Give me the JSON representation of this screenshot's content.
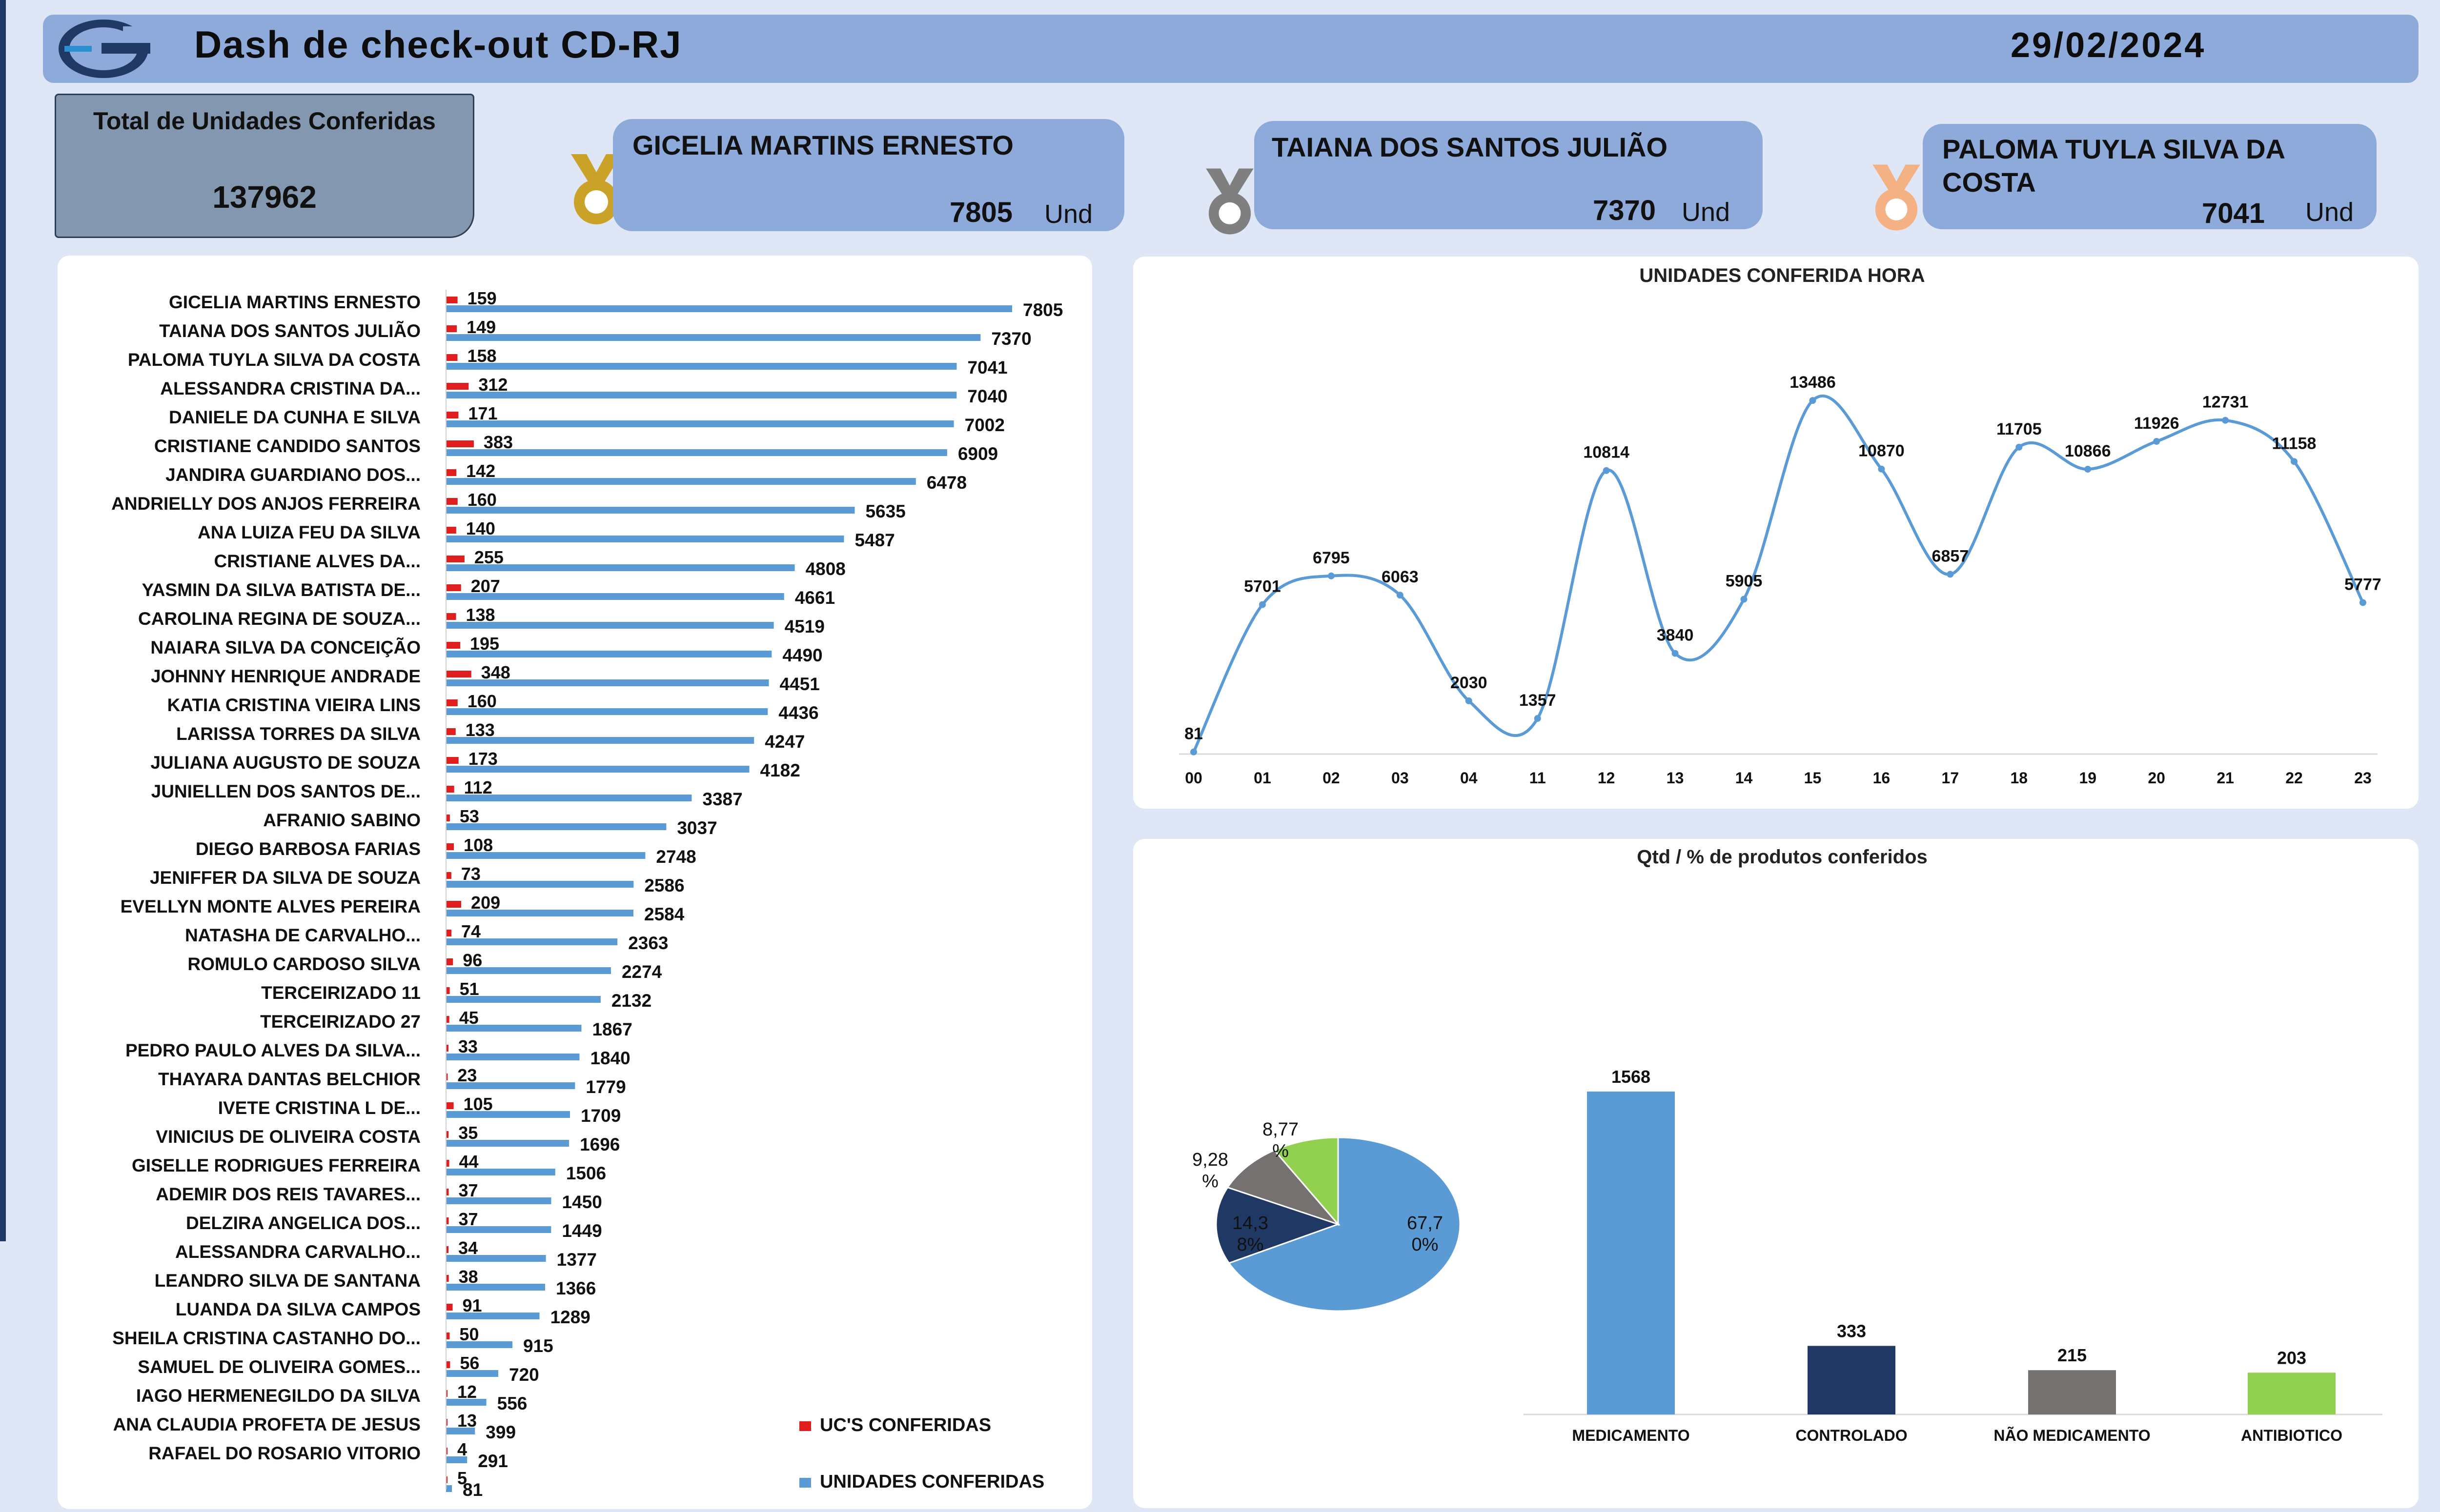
{
  "header": {
    "title": "Dash de check-out CD-RJ",
    "date": "29/02/2024"
  },
  "total": {
    "label": "Total de Unidades Conferidas",
    "value": "137962"
  },
  "podium": [
    {
      "name": "GICELIA MARTINS ERNESTO",
      "value": "7805",
      "unit": "Und",
      "medal": "gold-medal-icon",
      "color": "#c9a227"
    },
    {
      "name": "TAIANA DOS SANTOS JULIÃO",
      "value": "7370",
      "unit": "Und",
      "medal": "silver-medal-icon",
      "color": "#7f7f7f"
    },
    {
      "name": "PALOMA TUYLA SILVA DA COSTA",
      "value": "7041",
      "unit": "Und",
      "medal": "bronze-medal-icon",
      "color": "#f4b183"
    }
  ],
  "colors": {
    "uc": "#e01e1e",
    "unidades": "#5b9bd5",
    "line": "#5b9bd5",
    "medicamento": "#5b9bd5",
    "controlado": "#203864",
    "nao_medicamento": "#767171",
    "antibiotico": "#92d050"
  },
  "chart_data": [
    {
      "type": "bar",
      "orientation": "horizontal",
      "title": "",
      "legend_position": "bottom-right",
      "categories": [
        "GICELIA MARTINS ERNESTO",
        "TAIANA DOS SANTOS JULIÃO",
        "PALOMA TUYLA SILVA DA COSTA",
        "ALESSANDRA CRISTINA DA...",
        "DANIELE DA CUNHA E SILVA",
        "CRISTIANE CANDIDO SANTOS",
        "JANDIRA GUARDIANO DOS...",
        "ANDRIELLY DOS ANJOS FERREIRA",
        "ANA LUIZA FEU DA SILVA",
        "CRISTIANE ALVES DA...",
        "YASMIN DA SILVA BATISTA DE...",
        "CAROLINA REGINA DE SOUZA...",
        "NAIARA SILVA DA CONCEIÇÃO",
        "JOHNNY HENRIQUE ANDRADE",
        "KATIA CRISTINA VIEIRA LINS",
        "LARISSA TORRES DA SILVA",
        "JULIANA AUGUSTO DE SOUZA",
        "JUNIELLEN DOS SANTOS DE...",
        "AFRANIO SABINO",
        "DIEGO BARBOSA FARIAS",
        "JENIFFER DA SILVA DE SOUZA",
        "EVELLYN MONTE ALVES PEREIRA",
        "NATASHA DE CARVALHO...",
        "ROMULO CARDOSO SILVA",
        "TERCEIRIZADO 11",
        "TERCEIRIZADO 27",
        "PEDRO PAULO ALVES DA SILVA...",
        "THAYARA DANTAS BELCHIOR",
        "IVETE CRISTINA L DE...",
        "VINICIUS DE OLIVEIRA COSTA",
        "GISELLE RODRIGUES FERREIRA",
        "ADEMIR DOS REIS TAVARES...",
        "DELZIRA ANGELICA DOS...",
        "ALESSANDRA CARVALHO...",
        "LEANDRO SILVA DE SANTANA",
        "LUANDA DA SILVA CAMPOS",
        "SHEILA CRISTINA CASTANHO DO...",
        "SAMUEL DE OLIVEIRA GOMES...",
        "IAGO HERMENEGILDO DA SILVA",
        "ANA CLAUDIA PROFETA DE JESUS",
        "RAFAEL DO ROSARIO VITORIO",
        ""
      ],
      "series": [
        {
          "name": "UC'S CONFERIDAS",
          "values": [
            159,
            149,
            158,
            312,
            171,
            383,
            142,
            160,
            140,
            255,
            207,
            138,
            195,
            348,
            160,
            133,
            173,
            112,
            53,
            108,
            73,
            209,
            74,
            96,
            51,
            45,
            33,
            23,
            105,
            35,
            44,
            37,
            37,
            34,
            38,
            91,
            50,
            56,
            12,
            13,
            4,
            5
          ]
        },
        {
          "name": "UNIDADES CONFERIDAS",
          "values": [
            7805,
            7370,
            7041,
            7040,
            7002,
            6909,
            6478,
            5635,
            5487,
            4808,
            4661,
            4519,
            4490,
            4451,
            4436,
            4247,
            4182,
            3387,
            3037,
            2748,
            2586,
            2584,
            2363,
            2274,
            2132,
            1867,
            1840,
            1779,
            1709,
            1696,
            1506,
            1450,
            1449,
            1377,
            1366,
            1289,
            915,
            720,
            556,
            399,
            291,
            81
          ]
        }
      ]
    },
    {
      "type": "line",
      "title": "UNIDADES CONFERIDA HORA",
      "categories": [
        "00",
        "01",
        "02",
        "03",
        "04",
        "11",
        "12",
        "13",
        "14",
        "15",
        "16",
        "17",
        "18",
        "19",
        "20",
        "21",
        "22",
        "23"
      ],
      "values": [
        81,
        5701,
        6795,
        6063,
        2030,
        1357,
        10814,
        3840,
        5905,
        13486,
        10870,
        6857,
        11705,
        10866,
        11926,
        12731,
        11158,
        5777
      ],
      "ylim": [
        0,
        16000
      ]
    },
    {
      "type": "pie",
      "title": "Qtd / % de produtos conferidos",
      "slices": [
        {
          "label": "67,7 0%",
          "value": 67.7,
          "color": "#5b9bd5"
        },
        {
          "label": "14,3 8%",
          "value": 14.38,
          "color": "#203864"
        },
        {
          "label": "9,28 %",
          "value": 9.28,
          "color": "#767171"
        },
        {
          "label": "8,77 %",
          "value": 8.77,
          "color": "#92d050"
        }
      ]
    },
    {
      "type": "bar",
      "title": "Qtd / % de produtos conferidos",
      "categories": [
        "MEDICAMENTO",
        "CONTROLADO",
        "NÃO MEDICAMENTO",
        "ANTIBIOTICO"
      ],
      "values": [
        1568,
        333,
        215,
        203
      ],
      "colors": [
        "#5b9bd5",
        "#203864",
        "#767171",
        "#92d050"
      ],
      "ylim": [
        0,
        1800
      ]
    }
  ]
}
